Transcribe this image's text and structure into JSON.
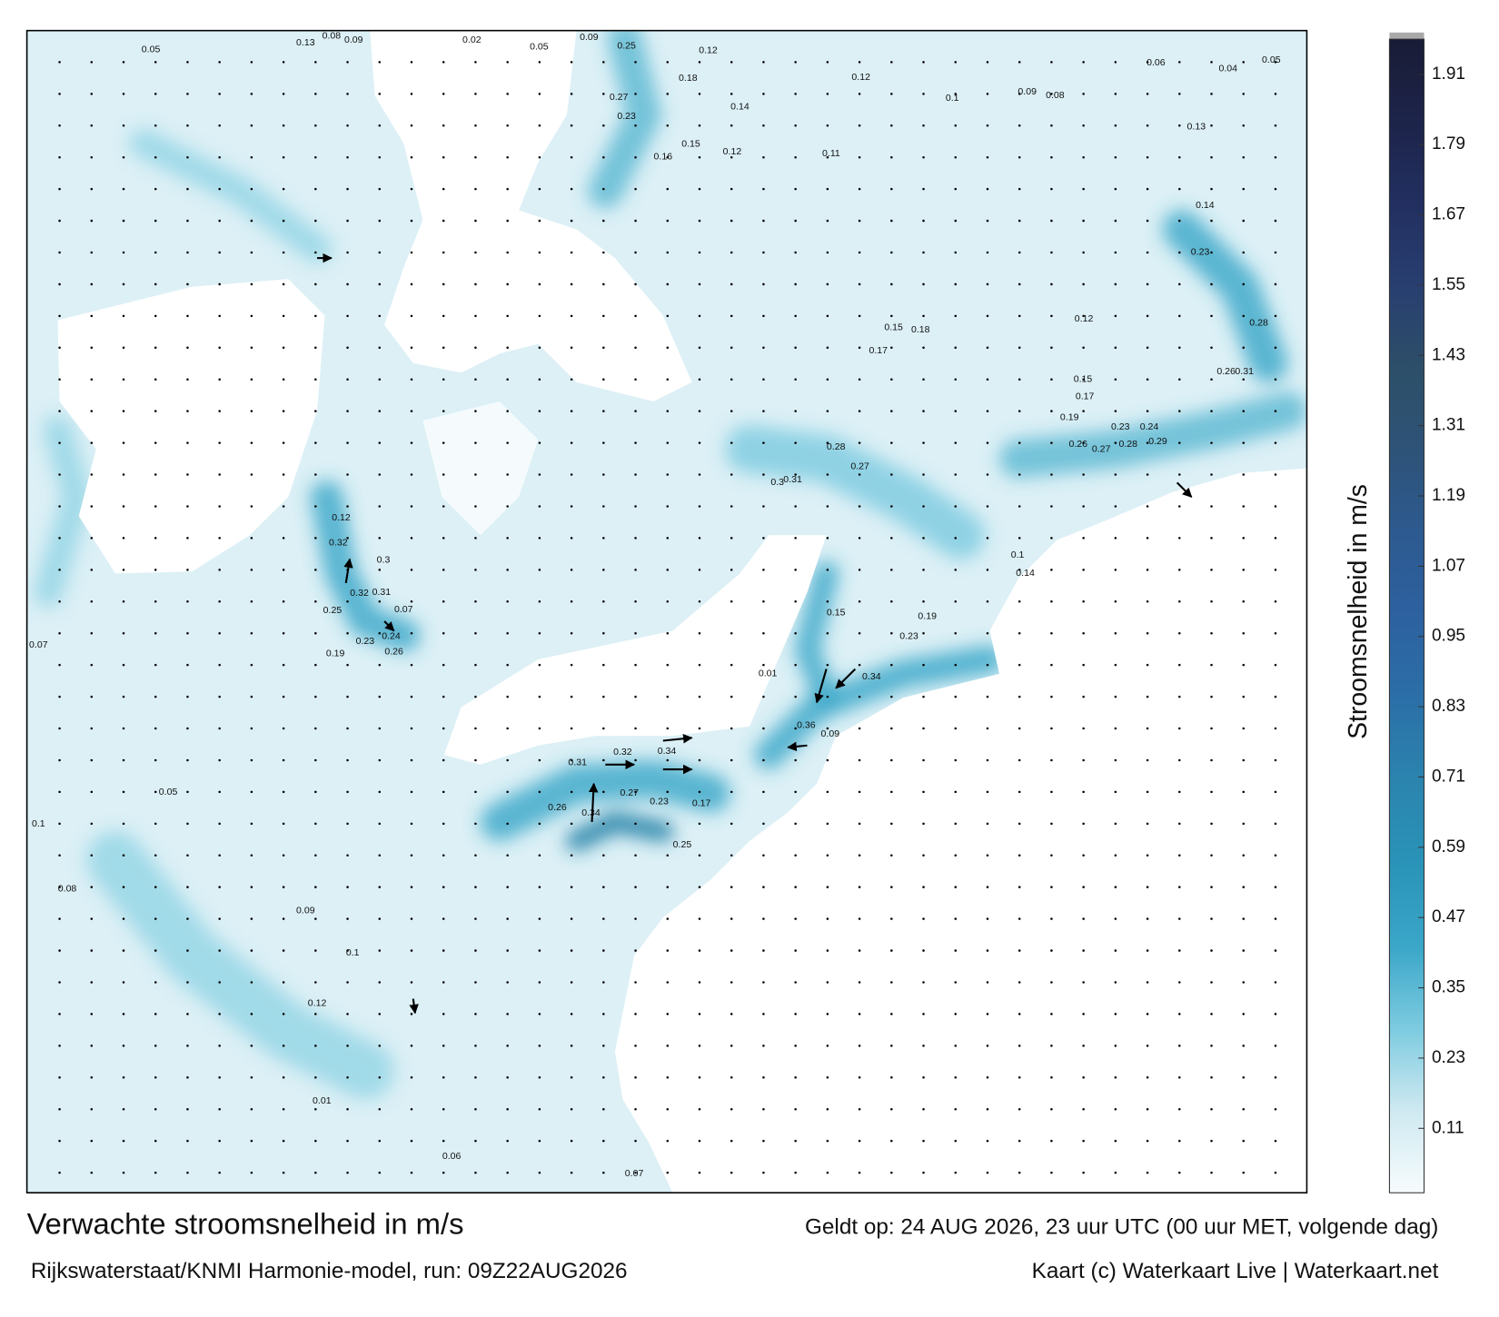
{
  "header": {
    "title": "Verwachte stroomsnelheid in m/s",
    "valid": "Geldt op: 24 AUG 2026, 23 uur UTC (00 uur MET, volgende dag)",
    "source": "Rijkswaterstaat/KNMI Harmonie-model, run: 09Z22AUG2026",
    "credit": "Kaart (c) Waterkaart Live | Waterkaart.net"
  },
  "colorbar": {
    "label": "Stroomsnelheid in m/s",
    "lim": [
      0,
      1.97
    ],
    "ticks": [
      0.11,
      0.23,
      0.35,
      0.47,
      0.59,
      0.71,
      0.83,
      0.95,
      1.07,
      1.19,
      1.31,
      1.43,
      1.55,
      1.67,
      1.79,
      1.91
    ],
    "colors": [
      "#f7fcfd",
      "#cfe9f1",
      "#7ccbe0",
      "#3aa6c8",
      "#2a93b8",
      "#2b84ae",
      "#2b6fa8",
      "#2d61a0",
      "#2d5a90",
      "#2e5378",
      "#2d4f68",
      "#283f70",
      "#222f60",
      "#1d244a",
      "#191c36"
    ]
  },
  "map_labels": [
    "0.05",
    "0.13",
    "0.08",
    "0.09",
    "0.02",
    "0.05",
    "0.09",
    "0.25",
    "0.12",
    "0.12",
    "0.1",
    "0.09",
    "0.08",
    "0.06",
    "0.04",
    "0.05",
    "0.18",
    "0.27",
    "0.23",
    "0.14",
    "0.15",
    "0.16",
    "0.12",
    "0.11",
    "0.13",
    "0.14",
    "0.23",
    "0.28",
    "0.26",
    "0.31",
    "0.12",
    "0.15",
    "0.18",
    "0.17",
    "0.15",
    "0.17",
    "0.19",
    "0.23",
    "0.24",
    "0.26",
    "0.27",
    "0.28",
    "0.29",
    "0.3",
    "0.31",
    "0.28",
    "0.27",
    "0.12",
    "0.32",
    "0.3",
    "0.32",
    "0.31",
    "0.25",
    "0.07",
    "0.24",
    "0.23",
    "0.26",
    "0.19",
    "0.34",
    "0.36",
    "0.09",
    "0.32",
    "0.34",
    "0.31",
    "0.17",
    "0.23",
    "0.27",
    "0.26",
    "0.34",
    "0.25",
    "0.07",
    "0.1",
    "0.08",
    "0.05",
    "0.09",
    "0.1",
    "0.12",
    "0.01",
    "0.07",
    "0.06",
    "0.1",
    "0.14",
    "0.19",
    "0.23",
    "0.15",
    "0.01"
  ]
}
